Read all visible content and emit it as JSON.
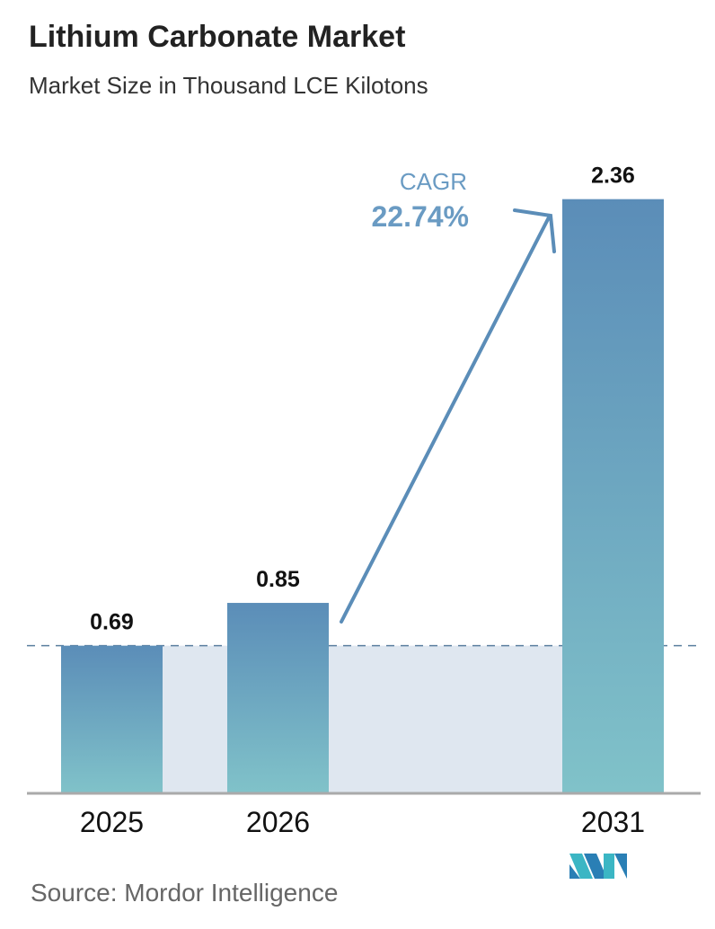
{
  "chart_data": {
    "type": "bar",
    "title": "Lithium Carbonate Market",
    "subtitle": "Market Size in Thousand LCE Kilotons",
    "categories": [
      "2025",
      "2026",
      "2031"
    ],
    "values": [
      0.69,
      0.85,
      2.36
    ],
    "value_labels": [
      "0.69",
      "0.85",
      "2.36"
    ],
    "annotation": {
      "label": "CAGR",
      "value": "22.74%"
    },
    "grid": false,
    "legend": "none",
    "colors": {
      "bar_top": "#5b8db8",
      "bar_bottom": "#80c2c9",
      "band": "#dfe7f0",
      "accent": "#5b8db8"
    }
  },
  "source": "Source:  Mordor Intelligence",
  "logo": "Mordor Intelligence logo"
}
